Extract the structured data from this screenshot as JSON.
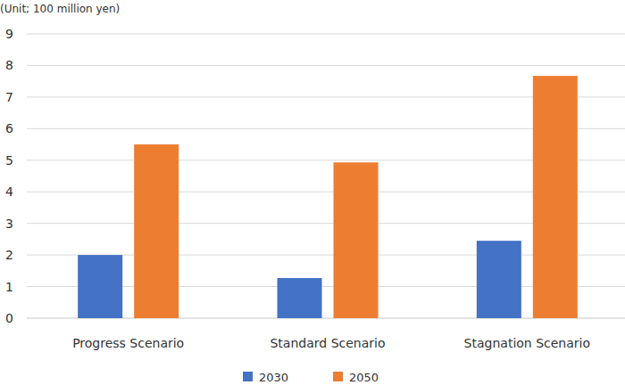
{
  "chart_data": {
    "type": "bar",
    "y_label": "(Unit; 100 million yen)",
    "categories": [
      "Progress Scenario",
      "Standard Scenario",
      "Stagnation Scenario"
    ],
    "series": [
      {
        "name": "2030",
        "color": "#4472c4",
        "values": [
          2.0,
          1.27,
          2.45
        ]
      },
      {
        "name": "2050",
        "color": "#ed7d31",
        "values": [
          5.5,
          4.93,
          7.67
        ]
      }
    ],
    "ylim": [
      0,
      9
    ],
    "yticks": [
      0,
      1,
      2,
      3,
      4,
      5,
      6,
      7,
      8,
      9
    ],
    "grid": true,
    "legend": "bottom"
  }
}
